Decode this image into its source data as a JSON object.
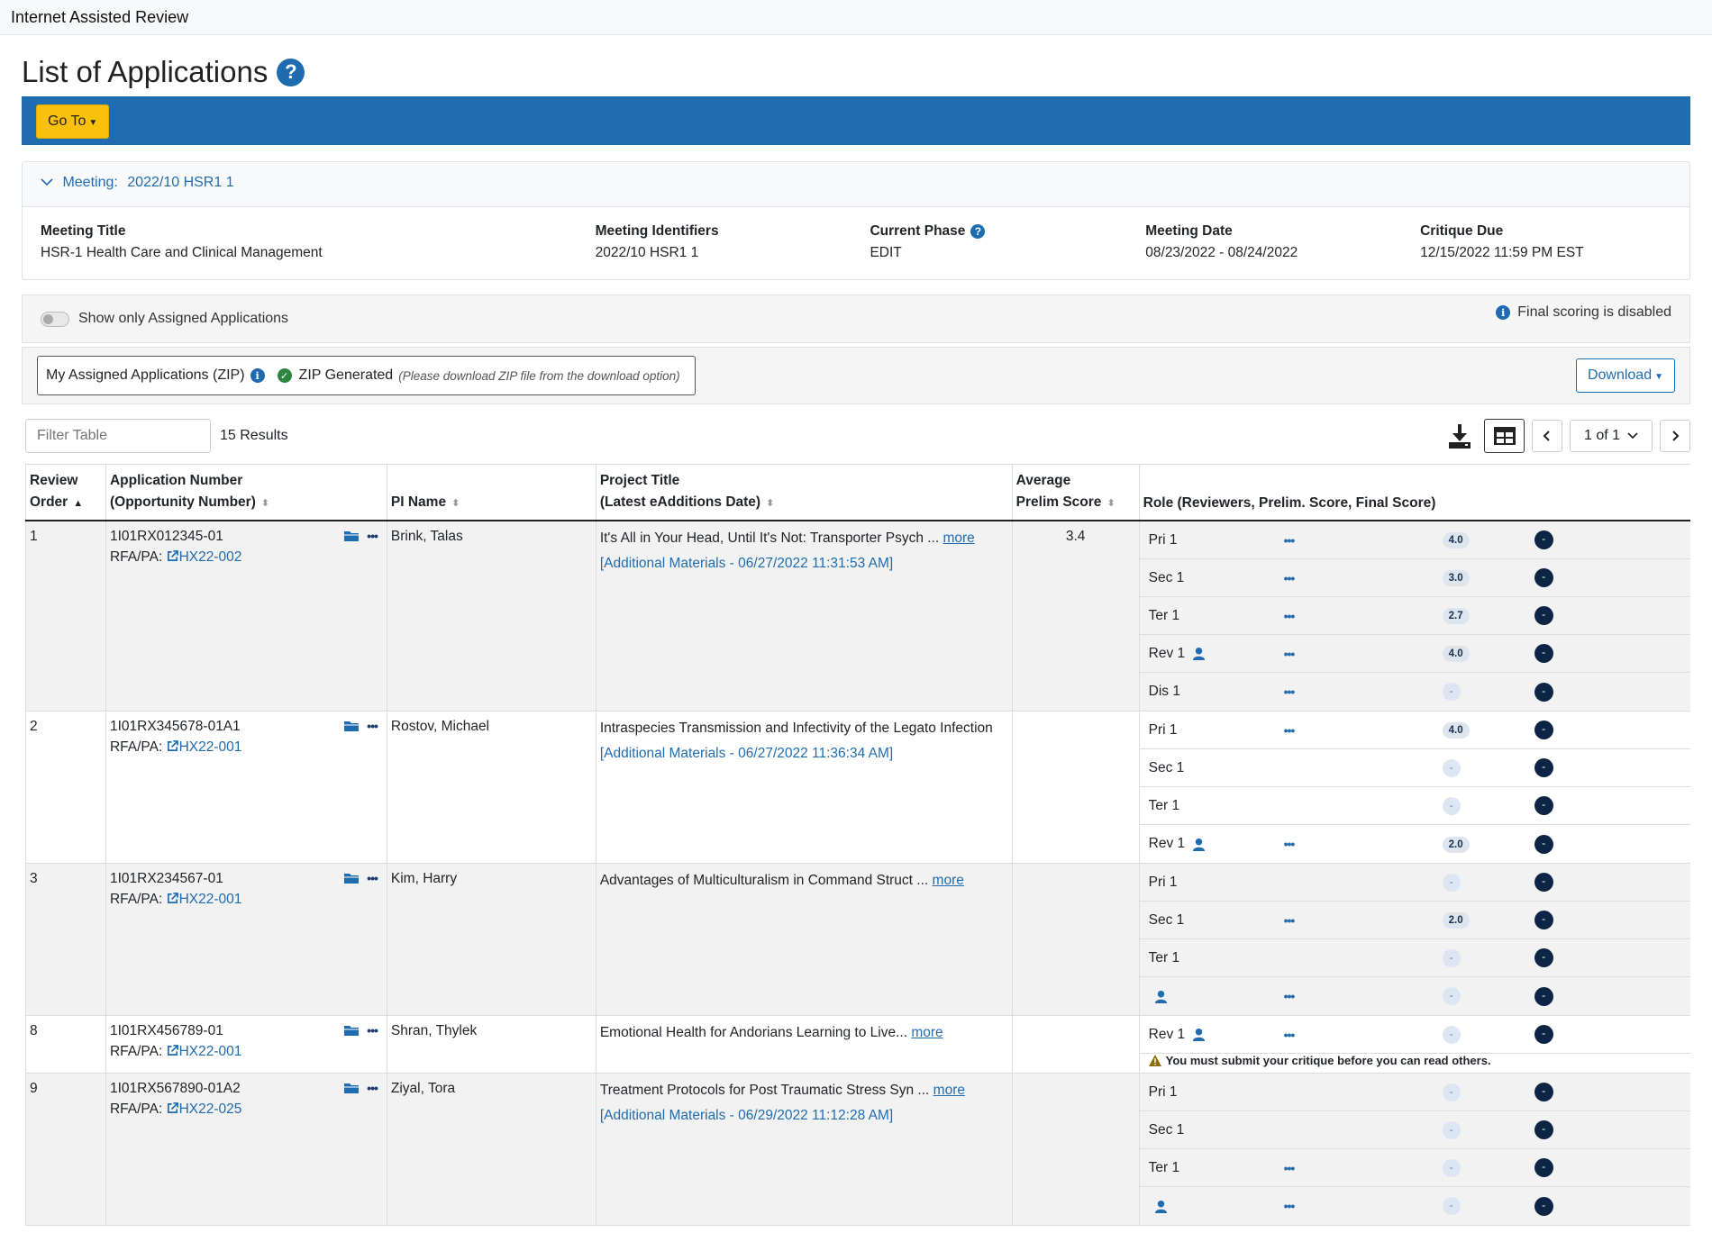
{
  "app": {
    "title": "Internet Assisted Review"
  },
  "page": {
    "title": "List of Applications"
  },
  "nav": {
    "goto_label": "Go To"
  },
  "meeting": {
    "header_label": "Meeting:",
    "header_value": "2022/10 HSR1 1",
    "fields": [
      {
        "label": "Meeting Title",
        "value": "HSR-1 Health Care and Clinical Management"
      },
      {
        "label": "Meeting Identifiers",
        "value": "2022/10 HSR1 1"
      },
      {
        "label": "Current Phase",
        "value": "EDIT"
      },
      {
        "label": "Meeting Date",
        "value": "08/23/2022 - 08/24/2022"
      },
      {
        "label": "Critique Due",
        "value": "12/15/2022 11:59 PM EST"
      }
    ]
  },
  "toggle": {
    "label": "Show only Assigned Applications",
    "checked": false
  },
  "final_scoring_note": "Final scoring is disabled",
  "zip": {
    "label": "My Assigned Applications (ZIP)",
    "status": "ZIP Generated",
    "note": "(Please download ZIP file from the download option)"
  },
  "download_label": "Download",
  "filter": {
    "placeholder": "Filter Table"
  },
  "results": "15 Results",
  "pagination": {
    "page_label": "1 of 1"
  },
  "table": {
    "headers": {
      "review_order": "Review Order",
      "app_number_1": "Application Number",
      "app_number_2": "(Opportunity Number)",
      "pi_name": "PI Name",
      "title_1": "Project Title",
      "title_2": "(Latest eAdditions Date)",
      "avg_1": "Average",
      "avg_2": "Prelim Score",
      "role": "Role (Reviewers, Prelim. Score, Final Score)"
    },
    "rfa_label": "RFA/PA:",
    "more_label": "more",
    "rows": [
      {
        "order": "1",
        "app": "1I01RX012345-01",
        "rfa": "HX22-002",
        "pi": "Brink, Talas",
        "title": "It's All in Your Head, Until It's Not: Transporter Psych ...",
        "additional": "[Additional Materials - 06/27/2022 11:31:53 AM]",
        "avg": "3.4",
        "roles": [
          {
            "role": "Pri 1",
            "person": false,
            "dots": true,
            "score": "4.0",
            "final": "-"
          },
          {
            "role": "Sec 1",
            "person": false,
            "dots": true,
            "score": "3.0",
            "final": "-"
          },
          {
            "role": "Ter 1",
            "person": false,
            "dots": true,
            "score": "2.7",
            "final": "-"
          },
          {
            "role": "Rev 1",
            "person": true,
            "dots": true,
            "score": "4.0",
            "final": "-"
          },
          {
            "role": "Dis 1",
            "person": false,
            "dots": true,
            "score": "-",
            "final": "-"
          }
        ]
      },
      {
        "order": "2",
        "app": "1I01RX345678-01A1",
        "rfa": "HX22-001",
        "pi": "Rostov, Michael",
        "title": "Intraspecies Transmission and Infectivity of the Legato Infection",
        "additional": "[Additional Materials - 06/27/2022 11:36:34 AM]",
        "avg": "",
        "roles": [
          {
            "role": "Pri 1",
            "person": false,
            "dots": true,
            "score": "4.0",
            "final": "-"
          },
          {
            "role": "Sec 1",
            "person": false,
            "dots": false,
            "score": "-",
            "final": "-"
          },
          {
            "role": "Ter 1",
            "person": false,
            "dots": false,
            "score": "-",
            "final": "-"
          },
          {
            "role": "Rev 1",
            "person": true,
            "dots": true,
            "score": "2.0",
            "final": "-"
          }
        ]
      },
      {
        "order": "3",
        "app": "1I01RX234567-01",
        "rfa": "HX22-001",
        "pi": "Kim, Harry",
        "title": "Advantages of Multiculturalism in Command Struct ...",
        "additional": "",
        "avg": "",
        "roles": [
          {
            "role": "Pri 1",
            "person": false,
            "dots": false,
            "score": "-",
            "final": "-"
          },
          {
            "role": "Sec 1",
            "person": false,
            "dots": true,
            "score": "2.0",
            "final": "-"
          },
          {
            "role": "Ter 1",
            "person": false,
            "dots": false,
            "score": "-",
            "final": "-"
          },
          {
            "role": "",
            "person": true,
            "dots": true,
            "score": "-",
            "final": "-"
          }
        ]
      },
      {
        "order": "8",
        "app": "1I01RX456789-01",
        "rfa": "HX22-001",
        "pi": "Shran, Thylek",
        "title": "Emotional Health for Andorians Learning to Live...",
        "additional": "",
        "avg": "",
        "roles": [
          {
            "role": "Rev 1",
            "person": true,
            "dots": true,
            "score": "-",
            "final": "-"
          }
        ],
        "warning": "You must submit your critique before you can read others."
      },
      {
        "order": "9",
        "app": "1I01RX567890-01A2",
        "rfa": "HX22-025",
        "pi": "Ziyal, Tora",
        "title": "Treatment Protocols for Post Traumatic Stress Syn ...",
        "additional": "[Additional Materials - 06/29/2022 11:12:28 AM]",
        "avg": "",
        "roles": [
          {
            "role": "Pri 1",
            "person": false,
            "dots": false,
            "score": "-",
            "final": "-"
          },
          {
            "role": "Sec 1",
            "person": false,
            "dots": false,
            "score": "-",
            "final": "-"
          },
          {
            "role": "Ter 1",
            "person": false,
            "dots": true,
            "score": "-",
            "final": "-"
          },
          {
            "role": "",
            "person": true,
            "dots": true,
            "score": "-",
            "final": "-"
          }
        ]
      }
    ]
  }
}
